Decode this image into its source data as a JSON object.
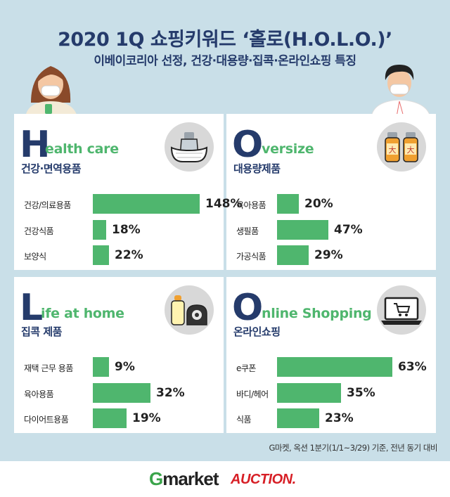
{
  "title": "2020 1Q 쇼핑키워드 ‘홀로(H.O.L.O.)’",
  "subtitle": "이베이코리아 선정, 건강·대용량·집콕·온라인쇼핑 특징",
  "colors": {
    "background": "#c9dfe8",
    "bar": "#4fb66e",
    "navy": "#253b6b",
    "green_text": "#4fb66e"
  },
  "chart_data": [
    {
      "type": "bar",
      "letter": "H",
      "heading_rest": "ealth care",
      "heading_ko": "건강·면역용품",
      "icon": "mask-and-bottle-icon",
      "categories": [
        "건강/의료용품",
        "건강식품",
        "보양식"
      ],
      "values": [
        148,
        18,
        22
      ],
      "labels": [
        "148%",
        "18%",
        "22%"
      ]
    },
    {
      "type": "bar",
      "letter": "O",
      "heading_rest": "versize",
      "heading_ko": "대용량제품",
      "icon": "large-bottles-icon",
      "icon_text": "大",
      "categories": [
        "육아용품",
        "생필품",
        "가공식품"
      ],
      "values": [
        20,
        47,
        29
      ],
      "labels": [
        "20%",
        "47%",
        "29%"
      ]
    },
    {
      "type": "bar",
      "letter": "L",
      "heading_rest": "ife at home",
      "heading_ko": "집콕 제품",
      "icon": "baby-bottle-and-tape-icon",
      "categories": [
        "재택 근무 용품",
        "육아용품",
        "다이어트용품"
      ],
      "values": [
        9,
        32,
        19
      ],
      "labels": [
        "9%",
        "32%",
        "19%"
      ]
    },
    {
      "type": "bar",
      "letter": "O",
      "heading_rest": "nline Shopping",
      "heading_ko": "온라인쇼핑",
      "icon": "laptop-cart-icon",
      "categories": [
        "e쿠폰",
        "바디/헤어",
        "식품"
      ],
      "values": [
        63,
        35,
        23
      ],
      "labels": [
        "63%",
        "35%",
        "23%"
      ]
    }
  ],
  "note": "G마켓, 옥션 1분기(1/1~3/29) 기준, 전년 동기 대비",
  "footer": {
    "gmarket_g": "G",
    "gmarket_rest": "market",
    "auction": "AUCTION."
  }
}
